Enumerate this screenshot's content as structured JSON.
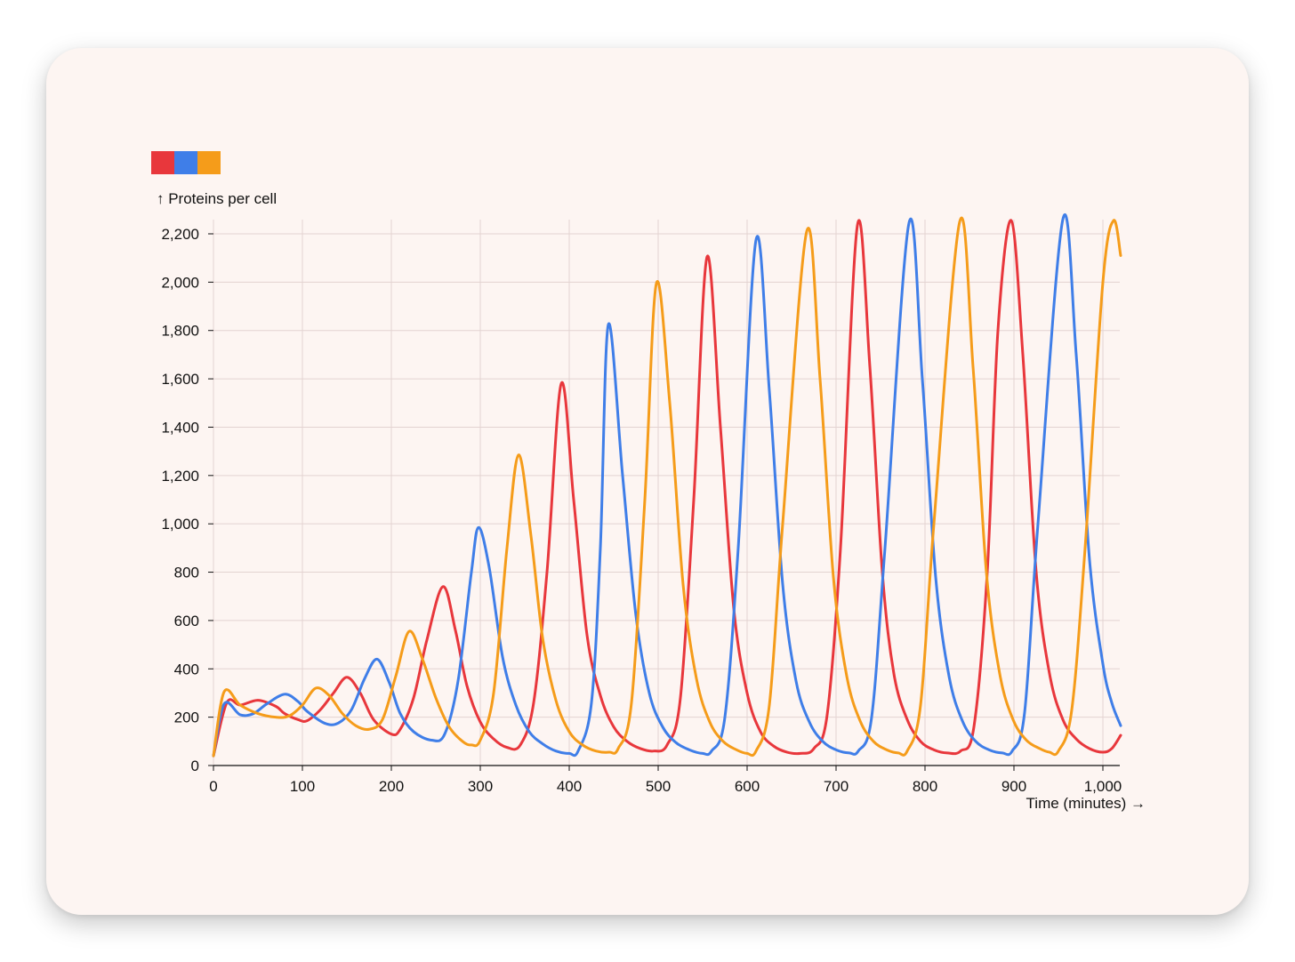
{
  "chart_data": {
    "type": "line",
    "title": "",
    "xlabel": "Time (minutes) →",
    "ylabel": "↑ Proteins per cell",
    "xlim": [
      0,
      1020
    ],
    "ylim": [
      0,
      2260
    ],
    "x_ticks": [
      0,
      100,
      200,
      300,
      400,
      500,
      600,
      700,
      800,
      900,
      1000
    ],
    "x_tick_labels": [
      "0",
      "100",
      "200",
      "300",
      "400",
      "500",
      "600",
      "700",
      "800",
      "900",
      "1,000"
    ],
    "y_ticks": [
      0,
      200,
      400,
      600,
      800,
      1000,
      1200,
      1400,
      1600,
      1800,
      2000,
      2200
    ],
    "y_tick_labels": [
      "0",
      "200",
      "400",
      "600",
      "800",
      "1,000",
      "1,200",
      "1,400",
      "1,600",
      "1,800",
      "2,000",
      "2,200"
    ],
    "grid": true,
    "legend": "top-left",
    "series": [
      {
        "color": "#e8373c",
        "points": [
          [
            0,
            40
          ],
          [
            15,
            260
          ],
          [
            30,
            250
          ],
          [
            50,
            270
          ],
          [
            70,
            245
          ],
          [
            80,
            215
          ],
          [
            95,
            190
          ],
          [
            105,
            185
          ],
          [
            120,
            230
          ],
          [
            135,
            300
          ],
          [
            150,
            365
          ],
          [
            165,
            300
          ],
          [
            180,
            190
          ],
          [
            200,
            130
          ],
          [
            210,
            150
          ],
          [
            225,
            280
          ],
          [
            240,
            520
          ],
          [
            258,
            740
          ],
          [
            272,
            560
          ],
          [
            285,
            330
          ],
          [
            300,
            180
          ],
          [
            315,
            110
          ],
          [
            330,
            75
          ],
          [
            345,
            85
          ],
          [
            360,
            260
          ],
          [
            375,
            800
          ],
          [
            391,
            1580
          ],
          [
            405,
            1100
          ],
          [
            420,
            540
          ],
          [
            435,
            290
          ],
          [
            450,
            160
          ],
          [
            465,
            100
          ],
          [
            480,
            70
          ],
          [
            495,
            60
          ],
          [
            510,
            85
          ],
          [
            525,
            280
          ],
          [
            540,
            1100
          ],
          [
            555,
            2105
          ],
          [
            570,
            1400
          ],
          [
            585,
            650
          ],
          [
            600,
            300
          ],
          [
            615,
            140
          ],
          [
            630,
            80
          ],
          [
            645,
            55
          ],
          [
            660,
            50
          ],
          [
            675,
            70
          ],
          [
            690,
            210
          ],
          [
            705,
            900
          ],
          [
            724,
            2235
          ],
          [
            738,
            1650
          ],
          [
            752,
            800
          ],
          [
            765,
            380
          ],
          [
            780,
            190
          ],
          [
            795,
            100
          ],
          [
            810,
            65
          ],
          [
            825,
            52
          ],
          [
            840,
            60
          ],
          [
            855,
            160
          ],
          [
            870,
            800
          ],
          [
            882,
            1800
          ],
          [
            897,
            2255
          ],
          [
            910,
            1700
          ],
          [
            925,
            800
          ],
          [
            940,
            380
          ],
          [
            955,
            190
          ],
          [
            970,
            110
          ],
          [
            985,
            70
          ],
          [
            1000,
            55
          ],
          [
            1010,
            70
          ],
          [
            1020,
            125
          ]
        ]
      },
      {
        "color": "#3f7ee8",
        "points": [
          [
            0,
            40
          ],
          [
            12,
            255
          ],
          [
            30,
            210
          ],
          [
            45,
            215
          ],
          [
            60,
            255
          ],
          [
            80,
            295
          ],
          [
            95,
            265
          ],
          [
            105,
            225
          ],
          [
            125,
            175
          ],
          [
            140,
            175
          ],
          [
            155,
            230
          ],
          [
            170,
            360
          ],
          [
            184,
            440
          ],
          [
            198,
            340
          ],
          [
            210,
            215
          ],
          [
            225,
            140
          ],
          [
            245,
            105
          ],
          [
            260,
            130
          ],
          [
            275,
            350
          ],
          [
            290,
            800
          ],
          [
            298,
            985
          ],
          [
            310,
            820
          ],
          [
            325,
            450
          ],
          [
            340,
            250
          ],
          [
            355,
            140
          ],
          [
            370,
            90
          ],
          [
            385,
            60
          ],
          [
            400,
            50
          ],
          [
            410,
            60
          ],
          [
            425,
            260
          ],
          [
            435,
            900
          ],
          [
            444,
            1825
          ],
          [
            460,
            1200
          ],
          [
            475,
            620
          ],
          [
            490,
            300
          ],
          [
            505,
            160
          ],
          [
            520,
            95
          ],
          [
            535,
            65
          ],
          [
            550,
            50
          ],
          [
            560,
            60
          ],
          [
            575,
            200
          ],
          [
            590,
            900
          ],
          [
            610,
            2175
          ],
          [
            625,
            1550
          ],
          [
            640,
            750
          ],
          [
            655,
            350
          ],
          [
            670,
            180
          ],
          [
            685,
            100
          ],
          [
            700,
            65
          ],
          [
            715,
            52
          ],
          [
            725,
            60
          ],
          [
            740,
            200
          ],
          [
            755,
            900
          ],
          [
            782,
            2245
          ],
          [
            797,
            1600
          ],
          [
            812,
            780
          ],
          [
            827,
            370
          ],
          [
            842,
            185
          ],
          [
            857,
            100
          ],
          [
            872,
            65
          ],
          [
            887,
            52
          ],
          [
            898,
            60
          ],
          [
            912,
            220
          ],
          [
            927,
            1000
          ],
          [
            955,
            2260
          ],
          [
            970,
            1700
          ],
          [
            985,
            850
          ],
          [
            1000,
            420
          ],
          [
            1010,
            260
          ],
          [
            1020,
            165
          ]
        ]
      },
      {
        "color": "#f59c1a",
        "points": [
          [
            0,
            40
          ],
          [
            12,
            305
          ],
          [
            30,
            250
          ],
          [
            50,
            215
          ],
          [
            70,
            200
          ],
          [
            85,
            205
          ],
          [
            100,
            250
          ],
          [
            115,
            320
          ],
          [
            130,
            290
          ],
          [
            145,
            215
          ],
          [
            160,
            165
          ],
          [
            175,
            150
          ],
          [
            190,
            190
          ],
          [
            205,
            370
          ],
          [
            220,
            555
          ],
          [
            235,
            440
          ],
          [
            250,
            280
          ],
          [
            265,
            160
          ],
          [
            280,
            100
          ],
          [
            290,
            85
          ],
          [
            300,
            105
          ],
          [
            315,
            300
          ],
          [
            330,
            900
          ],
          [
            343,
            1285
          ],
          [
            357,
            950
          ],
          [
            370,
            530
          ],
          [
            385,
            270
          ],
          [
            400,
            140
          ],
          [
            415,
            85
          ],
          [
            430,
            60
          ],
          [
            445,
            55
          ],
          [
            455,
            70
          ],
          [
            470,
            260
          ],
          [
            485,
            1100
          ],
          [
            498,
            1995
          ],
          [
            513,
            1500
          ],
          [
            528,
            750
          ],
          [
            543,
            360
          ],
          [
            558,
            180
          ],
          [
            573,
            100
          ],
          [
            588,
            65
          ],
          [
            600,
            50
          ],
          [
            610,
            60
          ],
          [
            625,
            250
          ],
          [
            640,
            1000
          ],
          [
            667,
            2210
          ],
          [
            682,
            1600
          ],
          [
            697,
            780
          ],
          [
            712,
            370
          ],
          [
            727,
            185
          ],
          [
            742,
            100
          ],
          [
            757,
            65
          ],
          [
            770,
            52
          ],
          [
            780,
            60
          ],
          [
            795,
            250
          ],
          [
            810,
            1000
          ],
          [
            839,
            2250
          ],
          [
            854,
            1650
          ],
          [
            869,
            800
          ],
          [
            884,
            380
          ],
          [
            899,
            190
          ],
          [
            914,
            105
          ],
          [
            929,
            70
          ],
          [
            940,
            55
          ],
          [
            950,
            60
          ],
          [
            965,
            230
          ],
          [
            980,
            900
          ],
          [
            1000,
            2000
          ],
          [
            1012,
            2255
          ],
          [
            1020,
            2110
          ]
        ]
      }
    ]
  }
}
